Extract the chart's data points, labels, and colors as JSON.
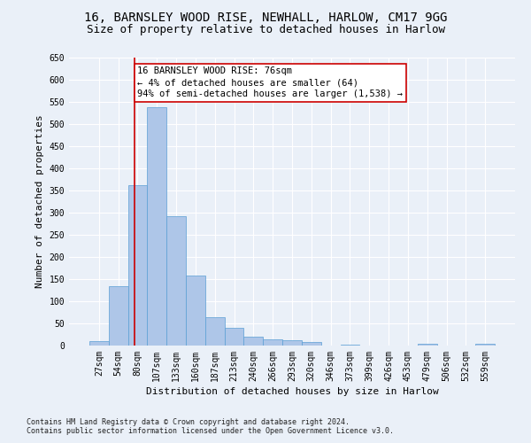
{
  "title1": "16, BARNSLEY WOOD RISE, NEWHALL, HARLOW, CM17 9GG",
  "title2": "Size of property relative to detached houses in Harlow",
  "xlabel": "Distribution of detached houses by size in Harlow",
  "ylabel": "Number of detached properties",
  "footer1": "Contains HM Land Registry data © Crown copyright and database right 2024.",
  "footer2": "Contains public sector information licensed under the Open Government Licence v3.0.",
  "bar_labels": [
    "27sqm",
    "54sqm",
    "80sqm",
    "107sqm",
    "133sqm",
    "160sqm",
    "187sqm",
    "213sqm",
    "240sqm",
    "266sqm",
    "293sqm",
    "320sqm",
    "346sqm",
    "373sqm",
    "399sqm",
    "426sqm",
    "453sqm",
    "479sqm",
    "506sqm",
    "532sqm",
    "559sqm"
  ],
  "bar_values": [
    10,
    135,
    362,
    538,
    292,
    158,
    65,
    40,
    20,
    15,
    13,
    9,
    0,
    3,
    0,
    0,
    0,
    5,
    0,
    0,
    5
  ],
  "bar_color": "#aec6e8",
  "bar_edge_color": "#5a9fd4",
  "annotation_box_text": "16 BARNSLEY WOOD RISE: 76sqm\n← 4% of detached houses are smaller (64)\n94% of semi-detached houses are larger (1,538) →",
  "annotation_box_color": "#ffffff",
  "annotation_box_edge_color": "#cc0000",
  "vline_color": "#cc0000",
  "vline_x_index": 1.85,
  "ylim": [
    0,
    650
  ],
  "yticks": [
    0,
    50,
    100,
    150,
    200,
    250,
    300,
    350,
    400,
    450,
    500,
    550,
    600,
    650
  ],
  "background_color": "#eaf0f8",
  "plot_background": "#eaf0f8",
  "grid_color": "#ffffff",
  "title_fontsize": 10,
  "subtitle_fontsize": 9,
  "axis_label_fontsize": 8,
  "tick_fontsize": 7,
  "annotation_fontsize": 7.5,
  "footer_fontsize": 6
}
